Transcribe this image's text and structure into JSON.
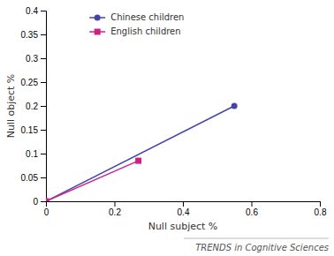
{
  "chart_data": {
    "type": "line",
    "x_label": "Null subject %",
    "y_label": "Null object %",
    "series": [
      {
        "name": "Chinese children",
        "color": "#4444aa",
        "marker": "circle",
        "x": [
          0,
          0.55
        ],
        "values": [
          0,
          0.2
        ]
      },
      {
        "name": "English children",
        "color": "#cc2288",
        "marker": "square",
        "x": [
          0,
          0.27
        ],
        "values": [
          0,
          0.085
        ]
      }
    ],
    "xlim": [
      0,
      0.8
    ],
    "ylim": [
      0,
      0.4
    ],
    "xticks": [
      0,
      0.2,
      0.4,
      0.6,
      0.8
    ],
    "yticks": [
      0,
      0.05,
      0.1,
      0.15,
      0.2,
      0.25,
      0.3,
      0.35,
      0.4
    ],
    "legend": "upper left",
    "grid": false,
    "annotations": [
      "TRENDS in Cognitive Sciences"
    ]
  }
}
